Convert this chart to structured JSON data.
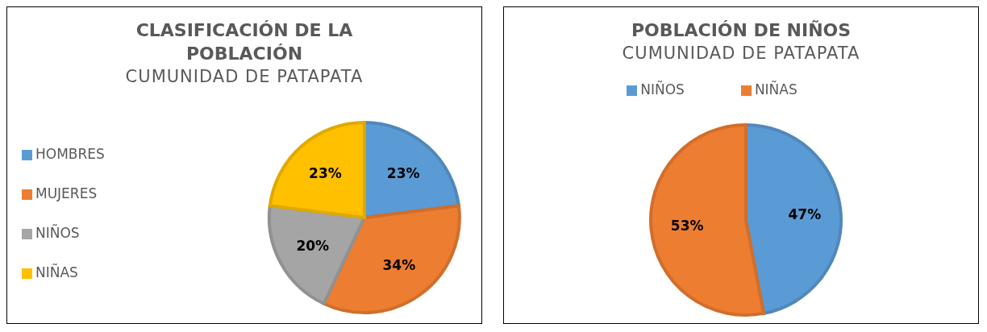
{
  "chart_data": [
    {
      "type": "pie",
      "title": "CLASIFICACIÓN DE LA POBLACIÓN",
      "subtitle": "CUMUNIDAD DE PATAPATA",
      "categories": [
        "HOMBRES",
        "MUJERES",
        "NIÑOS",
        "NIÑAS"
      ],
      "values": [
        23,
        34,
        20,
        23
      ],
      "colors": [
        "#5b9bd5",
        "#ed7d31",
        "#a5a5a5",
        "#ffc000"
      ],
      "value_labels": [
        "23%",
        "34%",
        "20%",
        "23%"
      ],
      "legend": "left"
    },
    {
      "type": "pie",
      "title": "POBLACIÓN DE NIÑOS",
      "subtitle": "CUMUNIDAD DE PATAPATA",
      "categories": [
        "NIÑOS",
        "NIÑAS"
      ],
      "values": [
        47,
        53
      ],
      "colors": [
        "#5b9bd5",
        "#ed7d31"
      ],
      "value_labels": [
        "47%",
        "53%"
      ],
      "legend": "top"
    }
  ]
}
